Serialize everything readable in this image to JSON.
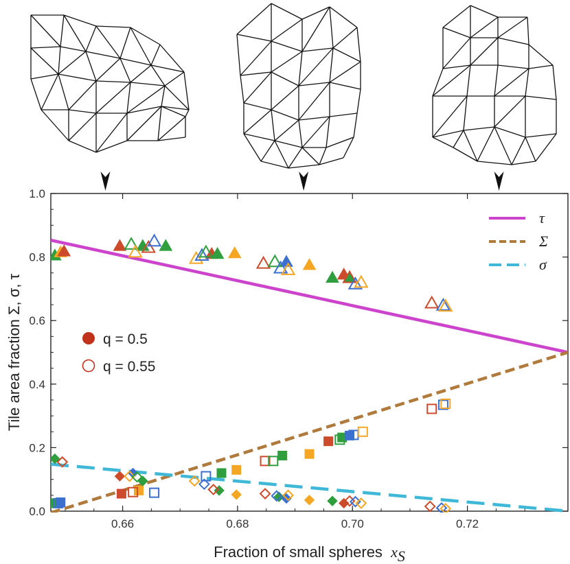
{
  "chart_data": {
    "type": "scatter",
    "xlabel": "Fraction of small spheres",
    "xlabel_var": "x",
    "xlabel_sub": "S",
    "ylabel": "Tile area fraction Σ, σ, τ",
    "xlim": [
      0.6475,
      0.7375
    ],
    "ylim": [
      0,
      1.0
    ],
    "x_ticks": [
      0.66,
      0.68,
      0.7,
      0.72
    ],
    "x_tick_labels": [
      "0.66",
      "0.68",
      "0.70",
      "0.72"
    ],
    "y_ticks": [
      0.0,
      0.2,
      0.4,
      0.6,
      0.8,
      1.0
    ],
    "y_tick_labels": [
      "0.0",
      "0.2",
      "0.4",
      "0.6",
      "0.8",
      "1.0"
    ],
    "grid": false,
    "legend_placement": "top-right",
    "lines": [
      {
        "name": "τ",
        "color": "#cc44cc",
        "dash": "solid",
        "x": [
          0.6475,
          0.7375
        ],
        "y": [
          0.853,
          0.5
        ]
      },
      {
        "name": "Σ",
        "color": "#b07a3c",
        "dash": "short-dash",
        "x": [
          0.6475,
          0.7375
        ],
        "y": [
          -0.005,
          0.5
        ]
      },
      {
        "name": "σ",
        "color": "#3fb8d8",
        "dash": "long-dash",
        "x": [
          0.6475,
          0.7375
        ],
        "y": [
          0.148,
          0.0
        ]
      }
    ],
    "marker_legend": [
      {
        "label": "q = 0.5",
        "fill": "filled",
        "color": "#c0321a"
      },
      {
        "label": "q = 0.55",
        "fill": "open",
        "color": "#c0321a"
      }
    ],
    "marker_colors": {
      "red": "#cc4b2a",
      "green": "#2e9e3e",
      "blue": "#3b6fd0",
      "orange": "#f5a623"
    },
    "series": [
      {
        "name": "triangles filled",
        "marker": "triangle",
        "fill": "filled",
        "points": [
          {
            "x": 0.6482,
            "y": 0.805,
            "c": "green"
          },
          {
            "x": 0.6492,
            "y": 0.815,
            "c": "orange"
          },
          {
            "x": 0.6498,
            "y": 0.818,
            "c": "red"
          },
          {
            "x": 0.6595,
            "y": 0.835,
            "c": "red"
          },
          {
            "x": 0.6635,
            "y": 0.835,
            "c": "green"
          },
          {
            "x": 0.6675,
            "y": 0.835,
            "c": "green"
          },
          {
            "x": 0.6755,
            "y": 0.81,
            "c": "red"
          },
          {
            "x": 0.6765,
            "y": 0.81,
            "c": "green"
          },
          {
            "x": 0.6795,
            "y": 0.812,
            "c": "orange"
          },
          {
            "x": 0.6885,
            "y": 0.785,
            "c": "blue"
          },
          {
            "x": 0.6925,
            "y": 0.775,
            "c": "orange"
          },
          {
            "x": 0.6965,
            "y": 0.735,
            "c": "green"
          },
          {
            "x": 0.6985,
            "y": 0.745,
            "c": "red"
          },
          {
            "x": 0.6995,
            "y": 0.735,
            "c": "green"
          }
        ]
      },
      {
        "name": "triangles open",
        "marker": "triangle",
        "fill": "open",
        "points": [
          {
            "x": 0.6615,
            "y": 0.84,
            "c": "green"
          },
          {
            "x": 0.6622,
            "y": 0.815,
            "c": "orange"
          },
          {
            "x": 0.6645,
            "y": 0.83,
            "c": "red"
          },
          {
            "x": 0.6655,
            "y": 0.85,
            "c": "blue"
          },
          {
            "x": 0.6728,
            "y": 0.795,
            "c": "orange"
          },
          {
            "x": 0.6738,
            "y": 0.805,
            "c": "blue"
          },
          {
            "x": 0.6745,
            "y": 0.815,
            "c": "green"
          },
          {
            "x": 0.6845,
            "y": 0.78,
            "c": "red"
          },
          {
            "x": 0.6865,
            "y": 0.785,
            "c": "green"
          },
          {
            "x": 0.6875,
            "y": 0.765,
            "c": "blue"
          },
          {
            "x": 0.6888,
            "y": 0.76,
            "c": "orange"
          },
          {
            "x": 0.6995,
            "y": 0.735,
            "c": "red"
          },
          {
            "x": 0.7005,
            "y": 0.715,
            "c": "blue"
          },
          {
            "x": 0.7015,
            "y": 0.72,
            "c": "orange"
          },
          {
            "x": 0.7138,
            "y": 0.655,
            "c": "red"
          },
          {
            "x": 0.7158,
            "y": 0.648,
            "c": "blue"
          },
          {
            "x": 0.7162,
            "y": 0.645,
            "c": "orange"
          }
        ]
      },
      {
        "name": "squares filled",
        "marker": "square",
        "fill": "filled",
        "points": [
          {
            "x": 0.6482,
            "y": 0.025,
            "c": "green"
          },
          {
            "x": 0.6492,
            "y": 0.028,
            "c": "blue"
          },
          {
            "x": 0.6598,
            "y": 0.055,
            "c": "red"
          },
          {
            "x": 0.6628,
            "y": 0.065,
            "c": "orange"
          },
          {
            "x": 0.6772,
            "y": 0.12,
            "c": "green"
          },
          {
            "x": 0.6798,
            "y": 0.13,
            "c": "orange"
          },
          {
            "x": 0.6878,
            "y": 0.175,
            "c": "green"
          },
          {
            "x": 0.6925,
            "y": 0.18,
            "c": "orange"
          },
          {
            "x": 0.6958,
            "y": 0.22,
            "c": "red"
          },
          {
            "x": 0.6982,
            "y": 0.232,
            "c": "green"
          },
          {
            "x": 0.6995,
            "y": 0.238,
            "c": "blue"
          }
        ]
      },
      {
        "name": "squares open",
        "marker": "square",
        "fill": "open",
        "points": [
          {
            "x": 0.6488,
            "y": 0.025,
            "c": "blue"
          },
          {
            "x": 0.6618,
            "y": 0.06,
            "c": "red"
          },
          {
            "x": 0.6655,
            "y": 0.058,
            "c": "blue"
          },
          {
            "x": 0.6745,
            "y": 0.11,
            "c": "blue"
          },
          {
            "x": 0.6848,
            "y": 0.158,
            "c": "red"
          },
          {
            "x": 0.6862,
            "y": 0.158,
            "c": "green"
          },
          {
            "x": 0.6978,
            "y": 0.225,
            "c": "green"
          },
          {
            "x": 0.7002,
            "y": 0.24,
            "c": "blue"
          },
          {
            "x": 0.7018,
            "y": 0.25,
            "c": "orange"
          },
          {
            "x": 0.7138,
            "y": 0.322,
            "c": "red"
          },
          {
            "x": 0.7158,
            "y": 0.335,
            "c": "blue"
          },
          {
            "x": 0.7162,
            "y": 0.338,
            "c": "orange"
          }
        ]
      },
      {
        "name": "diamonds filled",
        "marker": "diamond",
        "fill": "filled",
        "points": [
          {
            "x": 0.6482,
            "y": 0.165,
            "c": "green"
          },
          {
            "x": 0.6595,
            "y": 0.11,
            "c": "red"
          },
          {
            "x": 0.6618,
            "y": 0.12,
            "c": "blue"
          },
          {
            "x": 0.6635,
            "y": 0.095,
            "c": "green"
          },
          {
            "x": 0.6768,
            "y": 0.065,
            "c": "green"
          },
          {
            "x": 0.6798,
            "y": 0.052,
            "c": "orange"
          },
          {
            "x": 0.6872,
            "y": 0.045,
            "c": "green"
          },
          {
            "x": 0.6885,
            "y": 0.04,
            "c": "blue"
          },
          {
            "x": 0.6925,
            "y": 0.035,
            "c": "orange"
          },
          {
            "x": 0.6965,
            "y": 0.032,
            "c": "green"
          },
          {
            "x": 0.6985,
            "y": 0.025,
            "c": "red"
          }
        ]
      },
      {
        "name": "diamonds open",
        "marker": "diamond",
        "fill": "open",
        "points": [
          {
            "x": 0.6495,
            "y": 0.155,
            "c": "red"
          },
          {
            "x": 0.6612,
            "y": 0.11,
            "c": "orange"
          },
          {
            "x": 0.6625,
            "y": 0.108,
            "c": "green"
          },
          {
            "x": 0.6725,
            "y": 0.095,
            "c": "orange"
          },
          {
            "x": 0.6742,
            "y": 0.085,
            "c": "blue"
          },
          {
            "x": 0.6758,
            "y": 0.068,
            "c": "red"
          },
          {
            "x": 0.6848,
            "y": 0.055,
            "c": "red"
          },
          {
            "x": 0.6868,
            "y": 0.048,
            "c": "blue"
          },
          {
            "x": 0.6888,
            "y": 0.05,
            "c": "orange"
          },
          {
            "x": 0.6995,
            "y": 0.032,
            "c": "red"
          },
          {
            "x": 0.7005,
            "y": 0.03,
            "c": "blue"
          },
          {
            "x": 0.7015,
            "y": 0.025,
            "c": "orange"
          },
          {
            "x": 0.7135,
            "y": 0.015,
            "c": "red"
          },
          {
            "x": 0.7155,
            "y": 0.01,
            "c": "blue"
          },
          {
            "x": 0.7162,
            "y": 0.008,
            "c": "orange"
          }
        ]
      }
    ]
  },
  "tiling_figures": [
    {
      "name": "tiling-left",
      "points_to_x": 0.657
    },
    {
      "name": "tiling-middle",
      "points_to_x": 0.6915
    },
    {
      "name": "tiling-right",
      "points_to_x": 0.7255
    }
  ]
}
